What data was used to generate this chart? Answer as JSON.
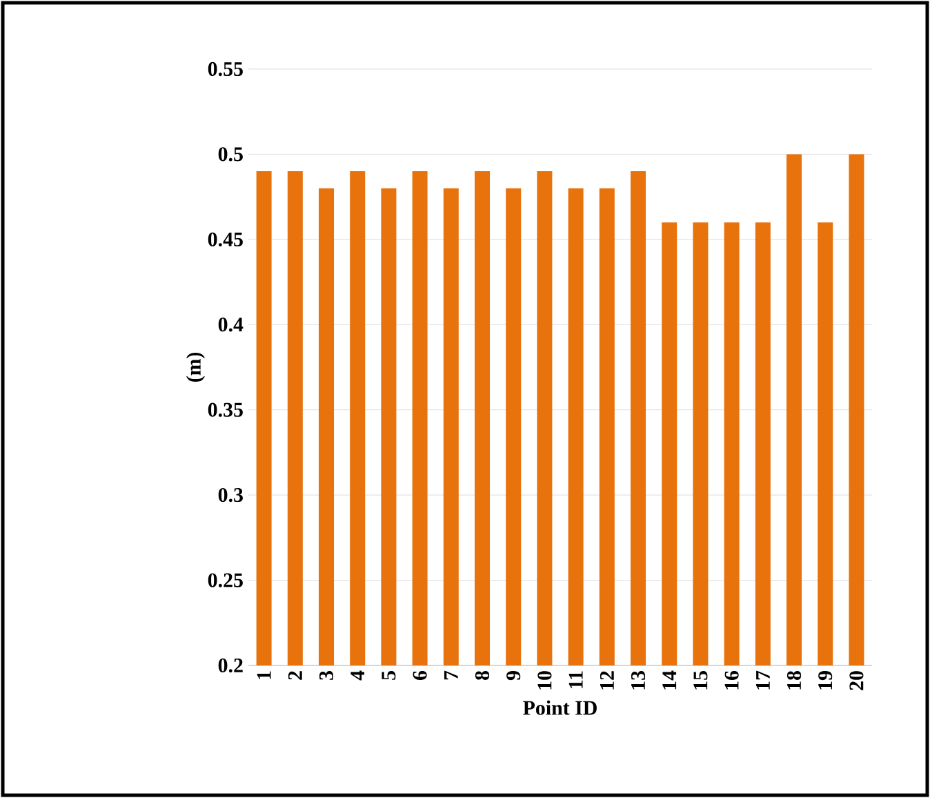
{
  "chart_data": {
    "type": "bar",
    "xlabel": "Point ID",
    "ylabel": "(m)",
    "categories": [
      "1",
      "2",
      "3",
      "4",
      "5",
      "6",
      "7",
      "8",
      "9",
      "10",
      "11",
      "12",
      "13",
      "14",
      "15",
      "16",
      "17",
      "18",
      "19",
      "20"
    ],
    "values": [
      0.49,
      0.49,
      0.48,
      0.49,
      0.48,
      0.49,
      0.48,
      0.49,
      0.48,
      0.49,
      0.48,
      0.48,
      0.49,
      0.46,
      0.46,
      0.46,
      0.46,
      0.5,
      0.46,
      0.5
    ],
    "color": "#e8720c",
    "ylim": [
      0.2,
      0.55
    ],
    "yticks": [
      0.2,
      0.25,
      0.3,
      0.35,
      0.4,
      0.45,
      0.5,
      0.55
    ],
    "grid": "y"
  }
}
